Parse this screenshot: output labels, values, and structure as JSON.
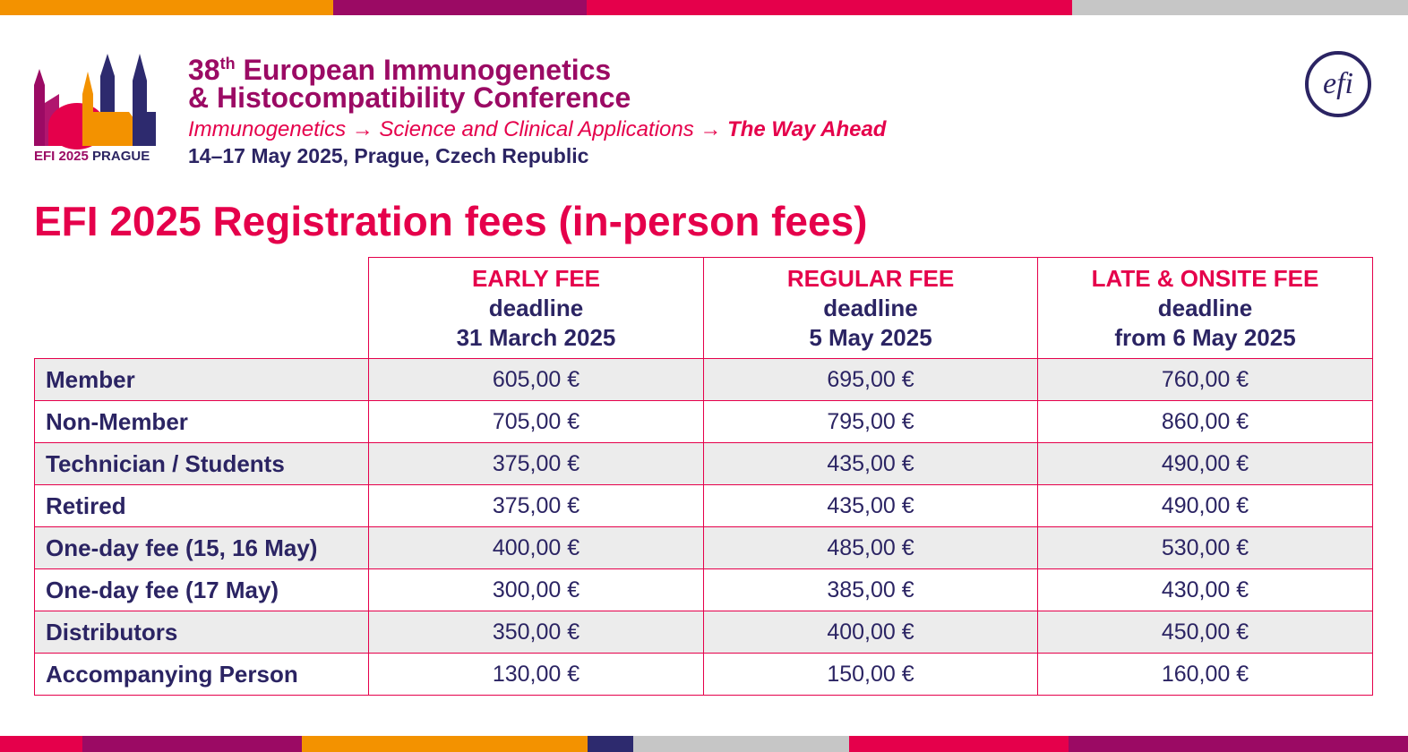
{
  "header": {
    "logo_left": {
      "line1": "EFI 2025",
      "line2": "PRAGUE"
    },
    "ordinal": "38",
    "ordinal_suffix": "th",
    "title_line1": "European Immunogenetics",
    "title_line2": "& Histocompatibility Conference",
    "tagline": "Immunogenetics → Science and Clinical Applications →",
    "tagline_emphasis": "The Way Ahead",
    "dates": "14–17 May 2025, Prague, Czech Republic",
    "logo_right": "efi"
  },
  "table": {
    "title": "EFI 2025 Registration fees (in-person fees)",
    "columns": [
      {
        "name": "EARLY FEE",
        "label": "deadline",
        "date": "31 March 2025"
      },
      {
        "name": "REGULAR FEE",
        "label": "deadline",
        "date": "5 May 2025"
      },
      {
        "name": "LATE & ONSITE FEE",
        "label": "deadline",
        "date": "from 6 May 2025"
      }
    ],
    "rows": [
      {
        "label": "Member",
        "values": [
          "605,00 €",
          "695,00 €",
          "760,00 €"
        ]
      },
      {
        "label": "Non-Member",
        "values": [
          "705,00 €",
          "795,00 €",
          "860,00 €"
        ]
      },
      {
        "label": "Technician / Students",
        "values": [
          "375,00 €",
          "435,00 €",
          "490,00 €"
        ]
      },
      {
        "label": "Retired",
        "values": [
          "375,00 €",
          "435,00 €",
          "490,00 €"
        ]
      },
      {
        "label": "One-day fee (15, 16 May)",
        "values": [
          "400,00 €",
          "485,00 €",
          "530,00 €"
        ]
      },
      {
        "label": "One-day fee (17 May)",
        "values": [
          "300,00 €",
          "385,00 €",
          "430,00 €"
        ]
      },
      {
        "label": "Distributors",
        "values": [
          "350,00 €",
          "400,00 €",
          "450,00 €"
        ]
      },
      {
        "label": "Accompanying Person",
        "values": [
          "130,00 €",
          "150,00 €",
          "160,00 €"
        ]
      }
    ]
  }
}
